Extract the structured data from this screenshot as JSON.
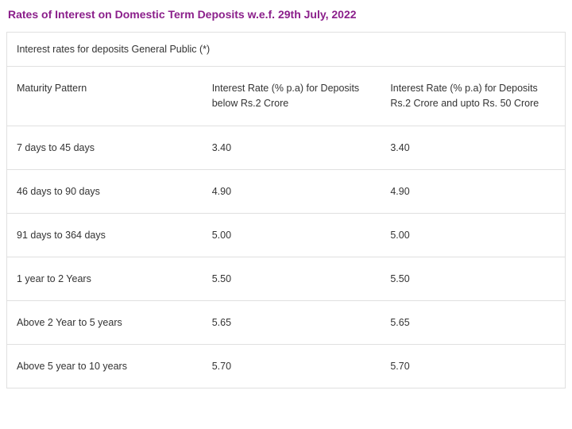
{
  "title": "Rates of Interest on Domestic Term Deposits w.e.f. 29th July, 2022",
  "subtitle": "Interest rates for deposits General Public (*)",
  "table": {
    "columns": [
      "Maturity Pattern",
      "Interest Rate (% p.a) for Deposits below Rs.2 Crore",
      "Interest Rate (% p.a) for Deposits Rs.2 Crore and upto Rs. 50 Crore"
    ],
    "rows": [
      [
        "7 days to 45 days",
        "3.40",
        "3.40"
      ],
      [
        "46 days to 90 days",
        "4.90",
        "4.90"
      ],
      [
        "91 days to 364 days",
        "5.00",
        "5.00"
      ],
      [
        "1 year to 2 Years",
        "5.50",
        "5.50"
      ],
      [
        "Above 2 Year to 5 years",
        "5.65",
        "5.65"
      ],
      [
        "Above 5 year to 10 years",
        "5.70",
        "5.70"
      ]
    ]
  },
  "colors": {
    "title_color": "#8b1f8b",
    "text_color": "#333333",
    "border_color": "#e0e0e0",
    "background": "#ffffff"
  }
}
